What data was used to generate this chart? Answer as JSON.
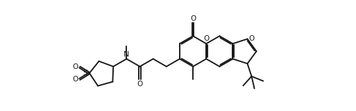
{
  "bg_color": "#ffffff",
  "line_color": "#1a1a1a",
  "line_width": 1.4,
  "figsize": [
    5.13,
    1.61
  ],
  "dpi": 100,
  "xlim": [
    0.0,
    10.5
  ],
  "ylim": [
    0.3,
    5.5
  ]
}
